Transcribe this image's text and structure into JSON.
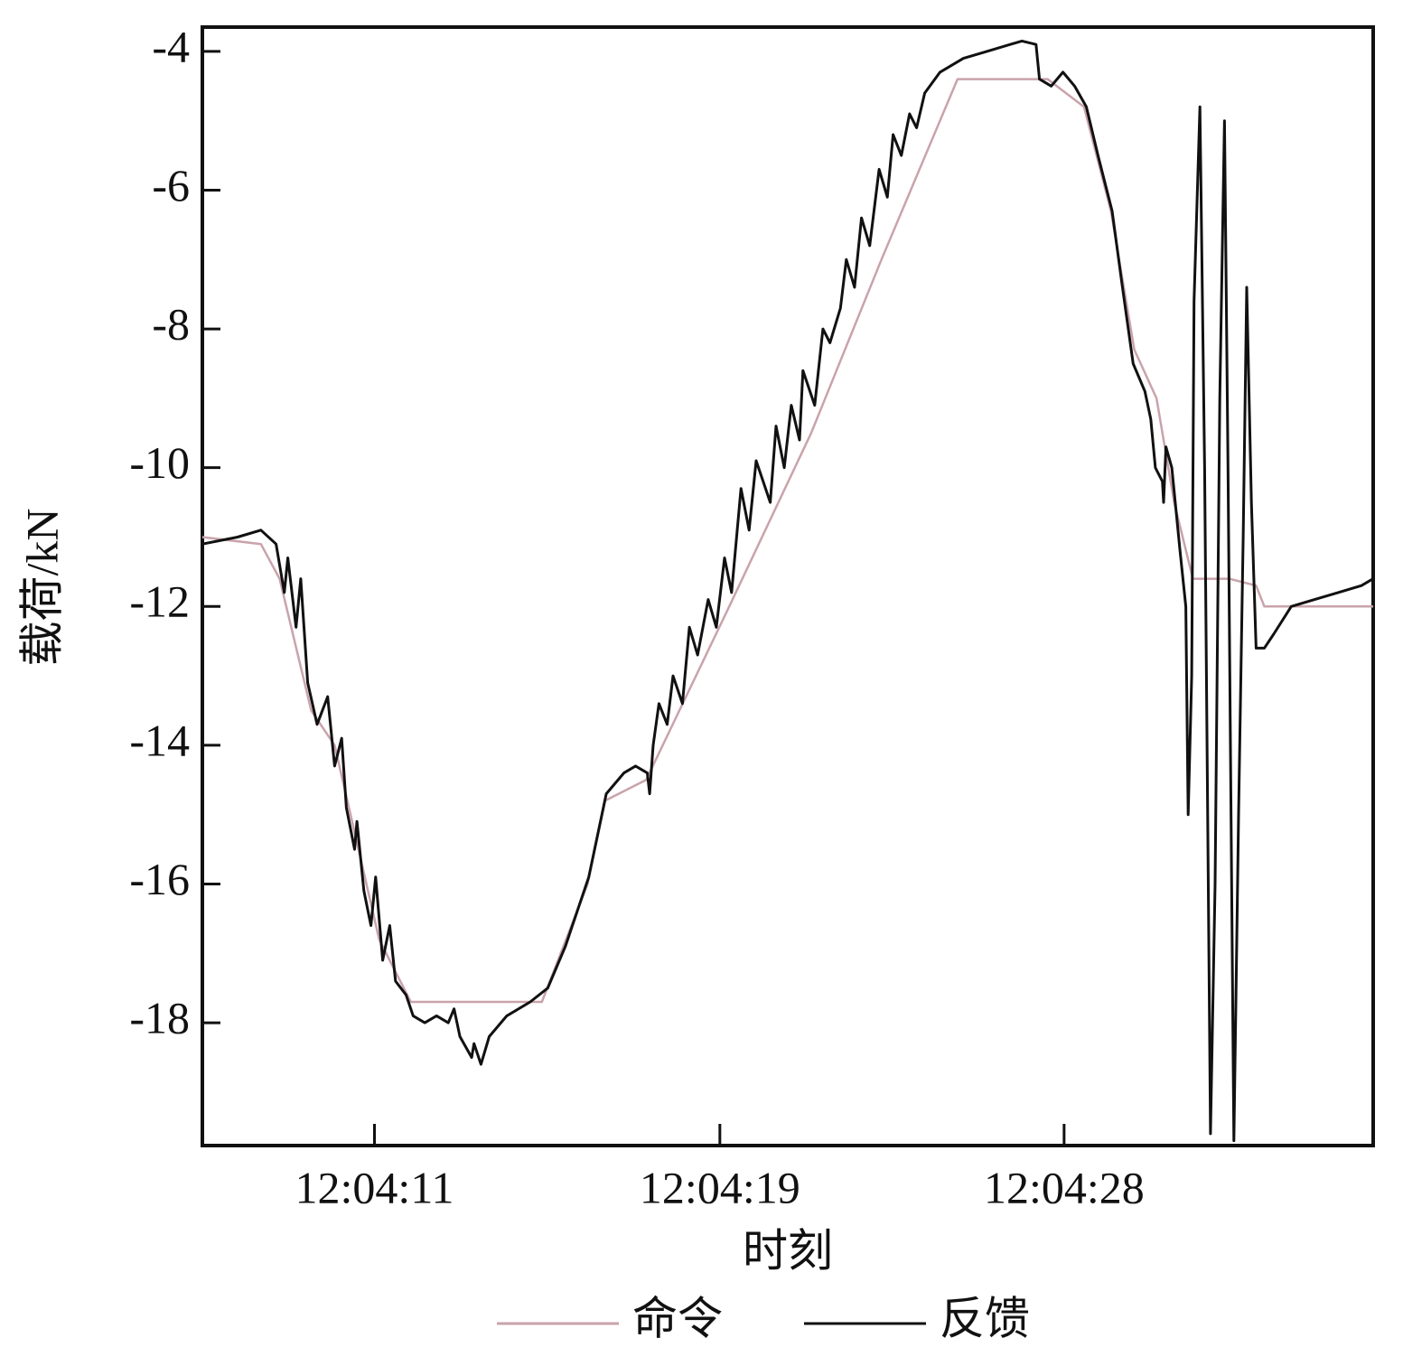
{
  "chart_data": {
    "type": "line",
    "x_label": "时刻",
    "y_label": "载荷/kN",
    "xlim": [
      0,
      100
    ],
    "xticks": [
      {
        "value": 14.7,
        "label": "12:04:11"
      },
      {
        "value": 44.2,
        "label": "12:04:19"
      },
      {
        "value": 73.6,
        "label": "12:04:28"
      }
    ],
    "ylim": [
      -19.77,
      -3.65
    ],
    "yticks": [
      -4,
      -6,
      -8,
      -10,
      -12,
      -14,
      -16,
      -18
    ],
    "legend": "bottom",
    "series": [
      {
        "name": "命令",
        "color": "#c9a3ab",
        "x": [
          0,
          5,
          6.6,
          9.3,
          11.3,
          15.1,
          17.8,
          29,
          32.9,
          34.4,
          37.9,
          45,
          52,
          58,
          64.5,
          72.2,
          75.3,
          77.6,
          79.6,
          81.5,
          83,
          84.6,
          87.7,
          90,
          90.7,
          100
        ],
        "values": [
          -11,
          -11.1,
          -11.6,
          -13.5,
          -14,
          -16.8,
          -17.7,
          -17.7,
          -16,
          -14.8,
          -14.5,
          -12,
          -9.5,
          -7,
          -4.4,
          -4.4,
          -4.8,
          -6.3,
          -8.3,
          -9,
          -10.5,
          -11.6,
          -11.6,
          -11.7,
          -12,
          -12
        ]
      },
      {
        "name": "反馈",
        "color": "#111111",
        "x": [
          0,
          3,
          5,
          6.3,
          7,
          7.3,
          8,
          8.4,
          9,
          9.8,
          10.7,
          11.3,
          11.9,
          12.3,
          13,
          13.2,
          13.8,
          14.4,
          14.8,
          15.4,
          16,
          16.5,
          17.4,
          18,
          19,
          20,
          21,
          21.5,
          22,
          23,
          23.2,
          23.8,
          24.5,
          26,
          28,
          29.5,
          31,
          33,
          34.5,
          36,
          37,
          38,
          38.2,
          38.5,
          39,
          39.7,
          40.2,
          41,
          41.6,
          42.3,
          43.2,
          43.9,
          44.6,
          45.2,
          46,
          46.7,
          47.3,
          48.5,
          49,
          49.7,
          50.3,
          51,
          51.3,
          52.3,
          53,
          53.6,
          54.5,
          55,
          55.7,
          56.3,
          57,
          57.8,
          58.5,
          59,
          59.7,
          60.4,
          61,
          61.7,
          63,
          65,
          67,
          69,
          70,
          71.2,
          71.5,
          72.5,
          73.5,
          74.5,
          75.5,
          76.5,
          77.7,
          78.5,
          79.5,
          80.5,
          81,
          81.4,
          82,
          82.1,
          82.3,
          82.8,
          83.5,
          84,
          84.2,
          84.5,
          84.7,
          85.2,
          85.6,
          86.1,
          86.5,
          86.9,
          87.3,
          87.6,
          88.1,
          88.5,
          88.9,
          89.2,
          89.6,
          90,
          90.7,
          91.5,
          93,
          95,
          97,
          99,
          100
        ],
        "values": [
          -11.1,
          -11,
          -10.9,
          -11.1,
          -11.8,
          -11.3,
          -12.3,
          -11.6,
          -13.1,
          -13.7,
          -13.3,
          -14.3,
          -13.9,
          -14.9,
          -15.5,
          -15.1,
          -16.1,
          -16.6,
          -15.9,
          -17.1,
          -16.6,
          -17.4,
          -17.6,
          -17.9,
          -18,
          -17.9,
          -18,
          -17.8,
          -18.2,
          -18.5,
          -18.3,
          -18.6,
          -18.2,
          -17.9,
          -17.7,
          -17.5,
          -16.9,
          -15.9,
          -14.7,
          -14.4,
          -14.3,
          -14.4,
          -14.7,
          -14,
          -13.4,
          -13.7,
          -13,
          -13.4,
          -12.3,
          -12.7,
          -11.9,
          -12.3,
          -11.3,
          -11.8,
          -10.3,
          -10.9,
          -9.9,
          -10.5,
          -9.4,
          -10,
          -9.1,
          -9.6,
          -8.6,
          -9.1,
          -8,
          -8.2,
          -7.7,
          -7,
          -7.4,
          -6.4,
          -6.8,
          -5.7,
          -6.1,
          -5.2,
          -5.5,
          -4.9,
          -5.1,
          -4.6,
          -4.3,
          -4.1,
          -4,
          -3.9,
          -3.85,
          -3.9,
          -4.4,
          -4.5,
          -4.3,
          -4.5,
          -4.8,
          -5.5,
          -6.3,
          -7.3,
          -8.5,
          -8.9,
          -9.3,
          -10,
          -10.2,
          -10.5,
          -9.7,
          -10,
          -11.2,
          -12,
          -15,
          -13,
          -7.6,
          -4.8,
          -10,
          -19.6,
          -16,
          -9,
          -5,
          -10,
          -19.7,
          -15,
          -11,
          -7.4,
          -10.5,
          -12.6,
          -12.6,
          -12.4,
          -12,
          -11.9,
          -11.8,
          -11.7,
          -11.6
        ]
      }
    ]
  }
}
